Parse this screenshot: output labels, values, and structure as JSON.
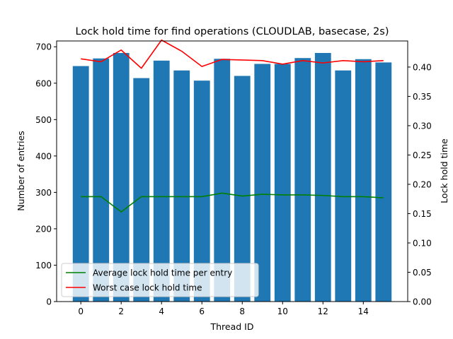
{
  "chart_data": {
    "type": "bar",
    "title": "Lock hold time for find operations (CLOUDLAB, basecase, 2s)",
    "xlabel": "Thread ID",
    "ylabel": "Number of entries",
    "y2label": "Lock hold time",
    "x": [
      0,
      1,
      2,
      3,
      4,
      5,
      6,
      7,
      8,
      9,
      10,
      11,
      12,
      13,
      14,
      15
    ],
    "xlim": [
      -1.2,
      16.2
    ],
    "ylim": [
      0,
      716
    ],
    "y2lim": [
      0,
      0.4445
    ],
    "xticks": [
      0,
      2,
      4,
      6,
      8,
      10,
      12,
      14
    ],
    "yticks": [
      0,
      100,
      200,
      300,
      400,
      500,
      600,
      700
    ],
    "y2ticks": [
      0.0,
      0.05,
      0.1,
      0.15,
      0.2,
      0.25,
      0.3,
      0.35,
      0.4
    ],
    "bars": {
      "name": "Number of entries",
      "color": "#1f77b4",
      "values": [
        647,
        668,
        683,
        614,
        662,
        635,
        607,
        667,
        620,
        653,
        653,
        669,
        683,
        635,
        666,
        657
      ]
    },
    "series": [
      {
        "name": "Average lock hold time per entry",
        "color": "#008000",
        "axis": "right",
        "values": [
          0.179,
          0.179,
          0.153,
          0.179,
          0.179,
          0.179,
          0.179,
          0.185,
          0.18,
          0.183,
          0.182,
          0.182,
          0.181,
          0.179,
          0.179,
          0.177
        ]
      },
      {
        "name": "Worst case lock hold time",
        "color": "#ff0000",
        "axis": "right",
        "values": [
          0.414,
          0.409,
          0.429,
          0.398,
          0.446,
          0.427,
          0.401,
          0.413,
          0.412,
          0.411,
          0.405,
          0.411,
          0.407,
          0.411,
          0.409,
          0.411
        ]
      }
    ],
    "legend_position": "lower-left",
    "grid": false
  }
}
